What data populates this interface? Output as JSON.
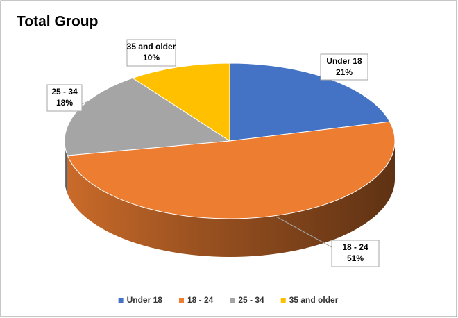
{
  "chart_data": {
    "type": "pie",
    "title": "Total Group",
    "categories": [
      "Under 18",
      "18 - 24",
      "25 - 34",
      "35 and older"
    ],
    "values": [
      21,
      51,
      18,
      10
    ],
    "value_labels": [
      "21%",
      "51%",
      "18%",
      "10%"
    ],
    "colors": [
      "#4472c4",
      "#ed7d31",
      "#a5a5a5",
      "#ffc000"
    ],
    "legend": "bottom"
  }
}
